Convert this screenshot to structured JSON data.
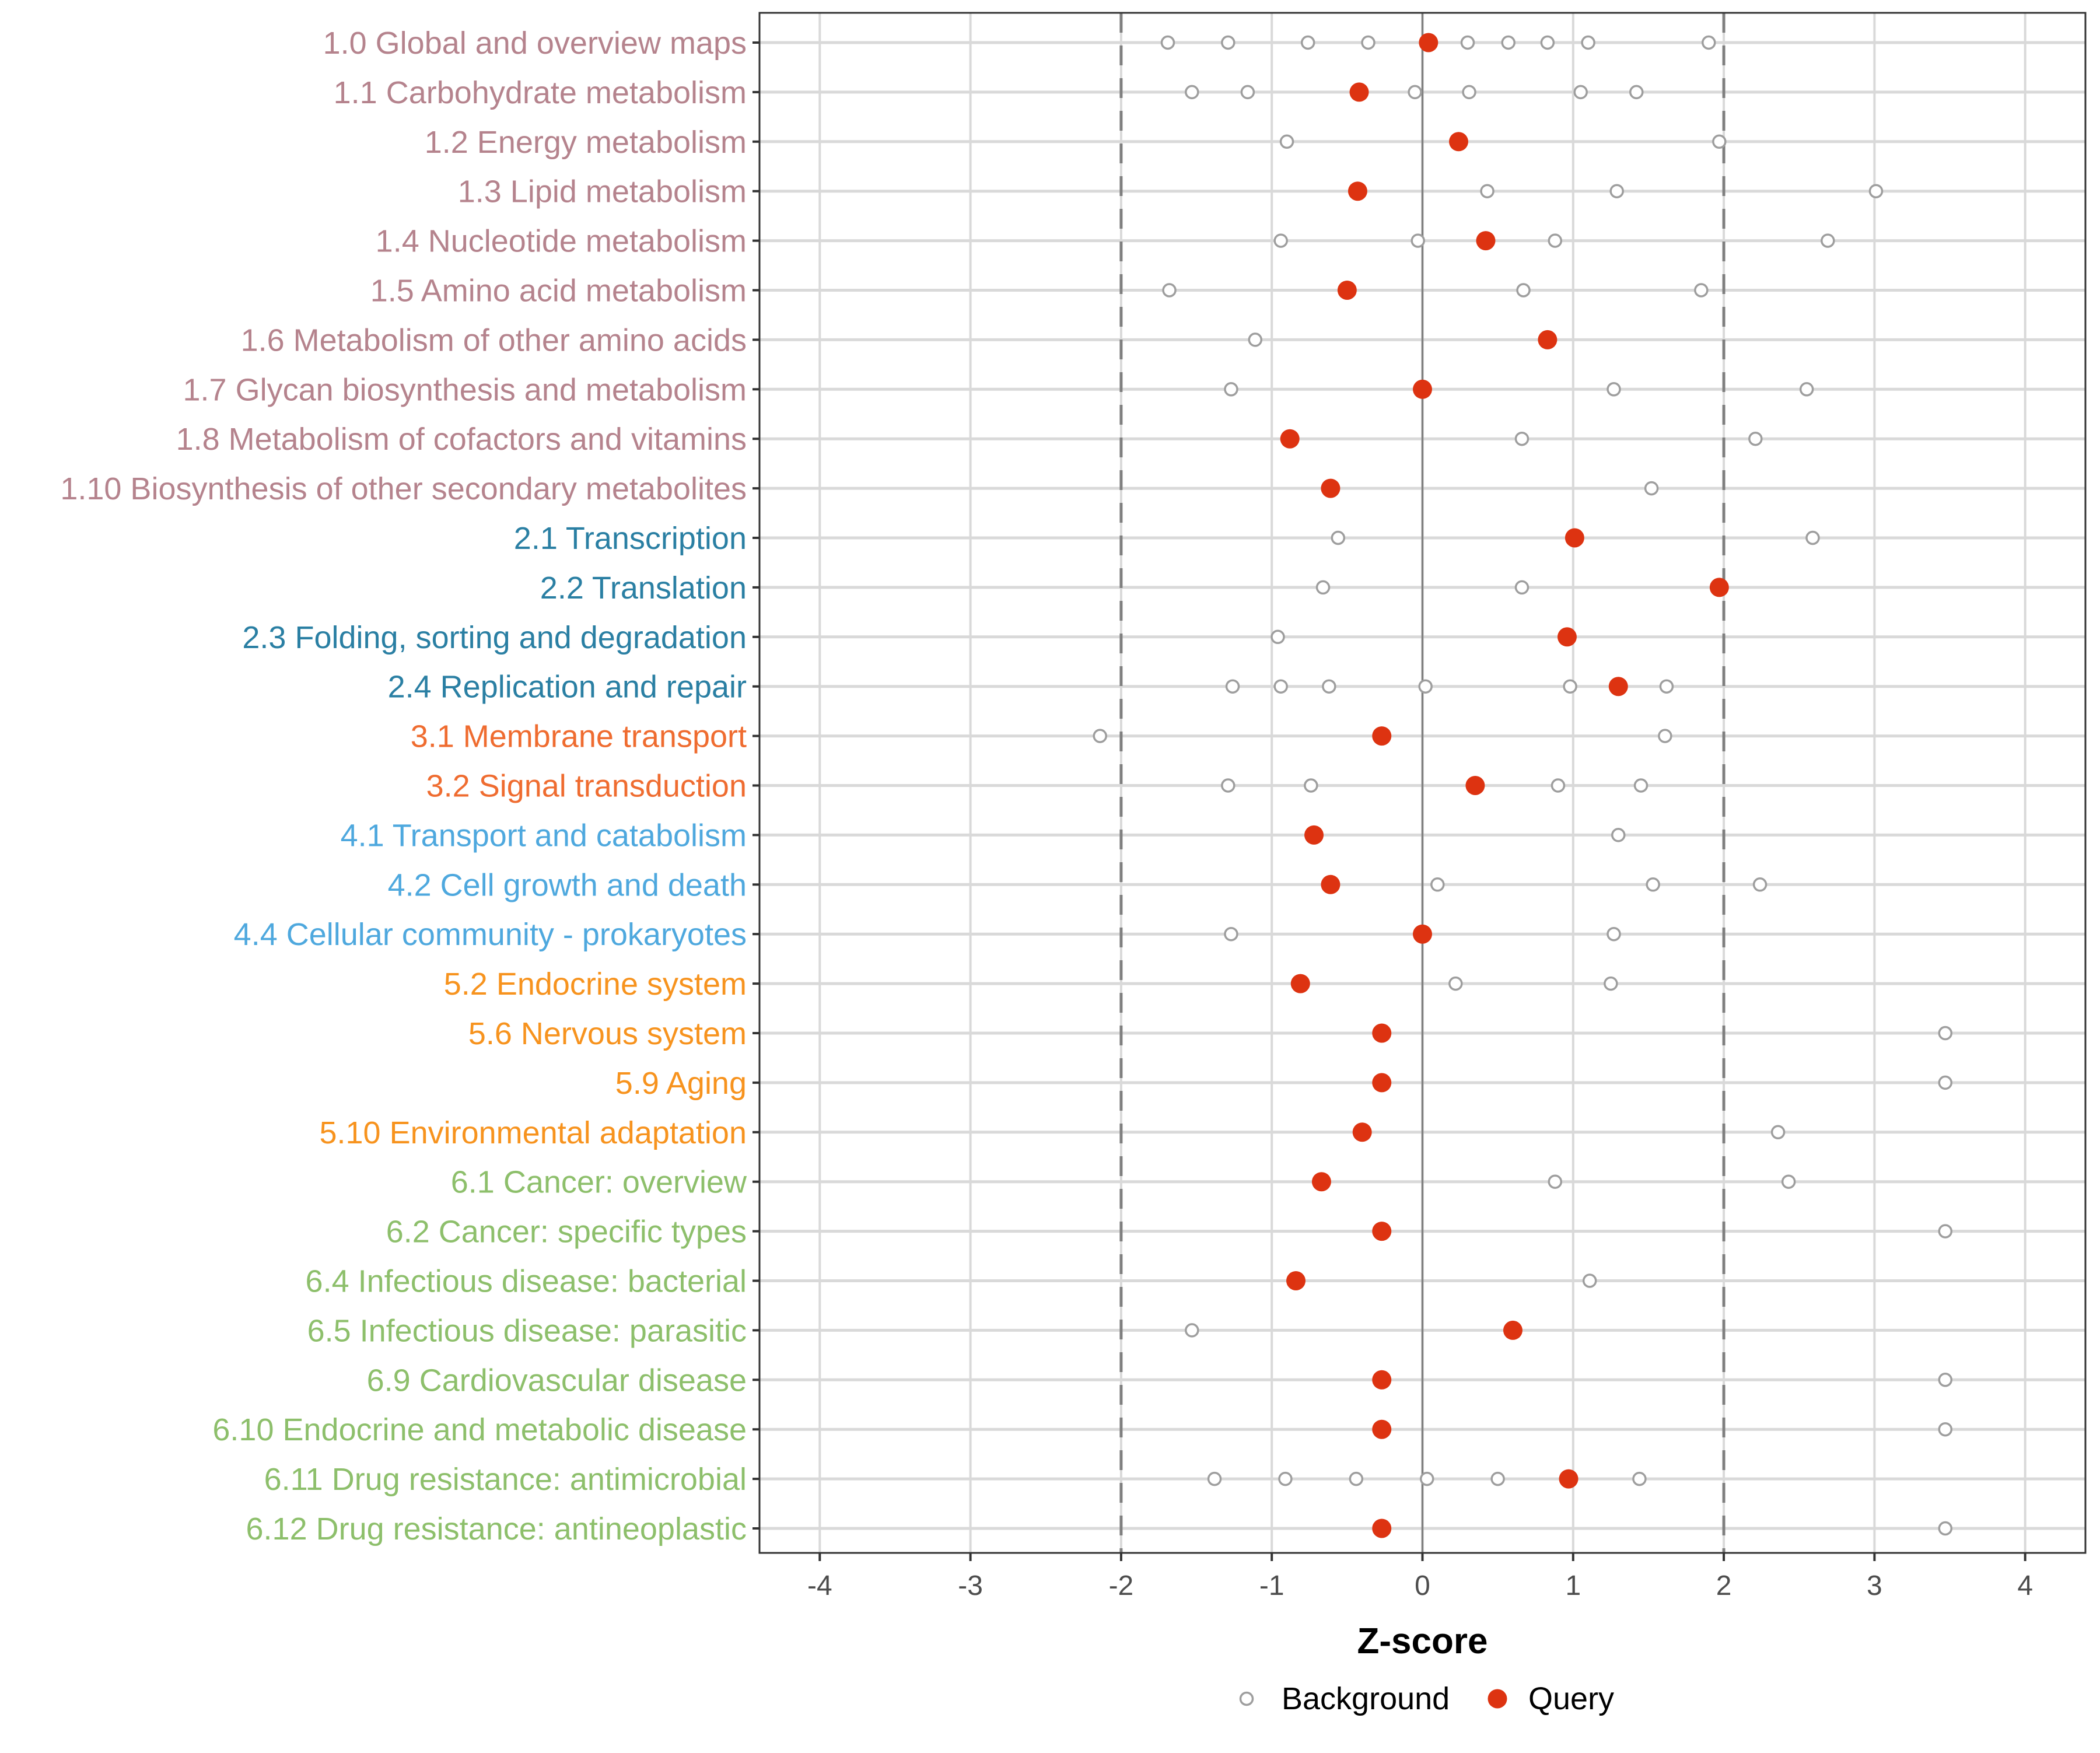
{
  "chart_data": {
    "type": "scatter",
    "title": "",
    "xlabel": "Z-score",
    "ylabel": "",
    "xlim": [
      -4.4,
      4.4
    ],
    "xticks": [
      -4,
      -3,
      -2,
      -1,
      0,
      1,
      2,
      3,
      4
    ],
    "xtick_labels": [
      "-4",
      "-3",
      "-2",
      "-1",
      "0",
      "1",
      "2",
      "3",
      "4"
    ],
    "reference_lines": [
      {
        "x": -2,
        "style": "dashed"
      },
      {
        "x": 0,
        "style": "solid"
      },
      {
        "x": 2,
        "style": "dashed"
      }
    ],
    "grid": true,
    "legend": {
      "position": "bottom",
      "entries": [
        {
          "label": "Background",
          "marker": "open-circle",
          "color": "#9e9e9e"
        },
        {
          "label": "Query",
          "marker": "filled-circle",
          "color": "#dd3311"
        }
      ]
    },
    "category_colors": {
      "1": "#b5838d",
      "2": "#2a7fa3",
      "3": "#ef6c30",
      "4": "#4ea8de",
      "5": "#f7931e",
      "6": "#8dbf6b"
    },
    "categories": [
      {
        "label": "1.0 Global and overview maps",
        "group": "1",
        "query": 0.04,
        "background": [
          -1.69,
          -1.29,
          -0.76,
          -0.36,
          0.3,
          0.57,
          0.83,
          1.1,
          1.9
        ]
      },
      {
        "label": "1.1 Carbohydrate metabolism",
        "group": "1",
        "query": -0.42,
        "background": [
          -1.53,
          -1.16,
          -0.05,
          0.31,
          1.05,
          1.42
        ]
      },
      {
        "label": "1.2 Energy metabolism",
        "group": "1",
        "query": 0.24,
        "background": [
          -0.9,
          1.97
        ]
      },
      {
        "label": "1.3 Lipid metabolism",
        "group": "1",
        "query": -0.43,
        "background": [
          0.43,
          1.29,
          3.01
        ]
      },
      {
        "label": "1.4 Nucleotide metabolism",
        "group": "1",
        "query": 0.42,
        "background": [
          -0.94,
          -0.03,
          0.88,
          2.69
        ]
      },
      {
        "label": "1.5 Amino acid metabolism",
        "group": "1",
        "query": -0.5,
        "background": [
          -1.68,
          0.67,
          1.85
        ]
      },
      {
        "label": "1.6 Metabolism of other amino acids",
        "group": "1",
        "query": 0.83,
        "background": [
          -1.11
        ]
      },
      {
        "label": "1.7 Glycan biosynthesis and metabolism",
        "group": "1",
        "query": 0.0,
        "background": [
          -1.27,
          1.27,
          2.55
        ]
      },
      {
        "label": "1.8 Metabolism of cofactors and vitamins",
        "group": "1",
        "query": -0.88,
        "background": [
          0.66,
          2.21
        ]
      },
      {
        "label": "1.10 Biosynthesis of other secondary metabolites",
        "group": "1",
        "query": -0.61,
        "background": [
          1.52
        ]
      },
      {
        "label": "2.1 Transcription",
        "group": "2",
        "query": 1.01,
        "background": [
          -0.56,
          2.59
        ]
      },
      {
        "label": "2.2 Translation",
        "group": "2",
        "query": 1.97,
        "background": [
          -0.66,
          0.66
        ]
      },
      {
        "label": "2.3 Folding, sorting and degradation",
        "group": "2",
        "query": 0.96,
        "background": [
          -0.96
        ]
      },
      {
        "label": "2.4 Replication and repair",
        "group": "2",
        "query": 1.3,
        "background": [
          -1.26,
          -0.94,
          -0.62,
          0.02,
          0.98,
          1.62
        ]
      },
      {
        "label": "3.1 Membrane transport",
        "group": "3",
        "query": -0.27,
        "background": [
          -2.14,
          1.61
        ]
      },
      {
        "label": "3.2 Signal transduction",
        "group": "3",
        "query": 0.35,
        "background": [
          -1.29,
          -0.74,
          0.9,
          1.45
        ]
      },
      {
        "label": "4.1 Transport and catabolism",
        "group": "4",
        "query": -0.72,
        "background": [
          1.3
        ]
      },
      {
        "label": "4.2 Cell growth and death",
        "group": "4",
        "query": -0.61,
        "background": [
          0.1,
          1.53,
          2.24
        ]
      },
      {
        "label": "4.4 Cellular community - prokaryotes",
        "group": "4",
        "query": 0.0,
        "background": [
          -1.27,
          1.27
        ]
      },
      {
        "label": "5.2 Endocrine system",
        "group": "5",
        "query": -0.81,
        "background": [
          0.22,
          1.25
        ]
      },
      {
        "label": "5.6 Nervous system",
        "group": "5",
        "query": -0.27,
        "background": [
          3.47
        ]
      },
      {
        "label": "5.9 Aging",
        "group": "5",
        "query": -0.27,
        "background": [
          3.47
        ]
      },
      {
        "label": "5.10 Environmental adaptation",
        "group": "5",
        "query": -0.4,
        "background": [
          2.36
        ]
      },
      {
        "label": "6.1 Cancer: overview",
        "group": "6",
        "query": -0.67,
        "background": [
          0.88,
          2.43
        ]
      },
      {
        "label": "6.2 Cancer: specific types",
        "group": "6",
        "query": -0.27,
        "background": [
          3.47
        ]
      },
      {
        "label": "6.4 Infectious disease: bacterial",
        "group": "6",
        "query": -0.84,
        "background": [
          1.11
        ]
      },
      {
        "label": "6.5 Infectious disease: parasitic",
        "group": "6",
        "query": 0.6,
        "background": [
          -1.53
        ]
      },
      {
        "label": "6.9 Cardiovascular disease",
        "group": "6",
        "query": -0.27,
        "background": [
          3.47
        ]
      },
      {
        "label": "6.10 Endocrine and metabolic disease",
        "group": "6",
        "query": -0.27,
        "background": [
          3.47
        ]
      },
      {
        "label": "6.11 Drug resistance: antimicrobial",
        "group": "6",
        "query": 0.97,
        "background": [
          -1.38,
          -0.91,
          -0.44,
          0.03,
          0.5,
          1.44
        ]
      },
      {
        "label": "6.12 Drug resistance: antineoplastic",
        "group": "6",
        "query": -0.27,
        "background": [
          3.47
        ]
      }
    ]
  }
}
